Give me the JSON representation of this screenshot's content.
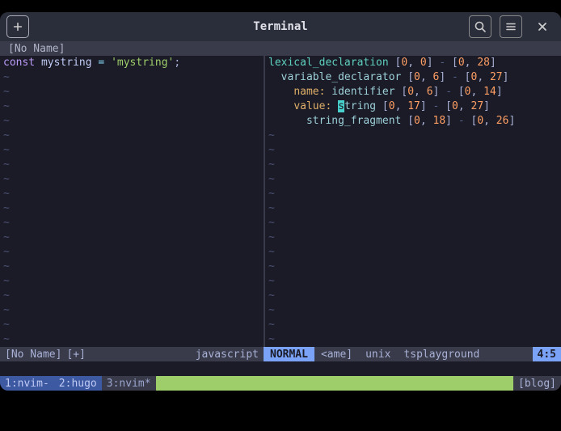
{
  "window": {
    "title": "Terminal"
  },
  "tab": {
    "label": "[No Name]"
  },
  "left_pane": {
    "code_tokens": [
      {
        "t": "const",
        "c": "kw-const"
      },
      {
        "t": " ",
        "c": "punct"
      },
      {
        "t": "mystring",
        "c": "ident"
      },
      {
        "t": " ",
        "c": "punct"
      },
      {
        "t": "=",
        "c": "eq"
      },
      {
        "t": " ",
        "c": "punct"
      },
      {
        "t": "'mystring'",
        "c": "str"
      },
      {
        "t": ";",
        "c": "punct"
      }
    ],
    "empty_rows": 19,
    "status": {
      "name": "[No Name]",
      "modified": "[+]",
      "filetype": "javascript"
    }
  },
  "right_pane": {
    "lines": [
      [
        {
          "t": "lexical_declaration",
          "c": "decl"
        },
        {
          "t": " [",
          "c": "bracket"
        },
        {
          "t": "0",
          "c": "num"
        },
        {
          "t": ", ",
          "c": "bracket"
        },
        {
          "t": "0",
          "c": "num"
        },
        {
          "t": "] ",
          "c": "bracket"
        },
        {
          "t": "-",
          "c": "dash"
        },
        {
          "t": " [",
          "c": "bracket"
        },
        {
          "t": "0",
          "c": "num"
        },
        {
          "t": ", ",
          "c": "bracket"
        },
        {
          "t": "28",
          "c": "num"
        },
        {
          "t": "]",
          "c": "bracket"
        }
      ],
      [
        {
          "t": "  ",
          "c": "bracket"
        },
        {
          "t": "variable_declarator",
          "c": "node-name"
        },
        {
          "t": " [",
          "c": "bracket"
        },
        {
          "t": "0",
          "c": "num"
        },
        {
          "t": ", ",
          "c": "bracket"
        },
        {
          "t": "6",
          "c": "num"
        },
        {
          "t": "] ",
          "c": "bracket"
        },
        {
          "t": "-",
          "c": "dash"
        },
        {
          "t": " [",
          "c": "bracket"
        },
        {
          "t": "0",
          "c": "num"
        },
        {
          "t": ", ",
          "c": "bracket"
        },
        {
          "t": "27",
          "c": "num"
        },
        {
          "t": "]",
          "c": "bracket"
        }
      ],
      [
        {
          "t": "    ",
          "c": "bracket"
        },
        {
          "t": "name:",
          "c": "field-name"
        },
        {
          "t": " ",
          "c": "bracket"
        },
        {
          "t": "identifier",
          "c": "node-name"
        },
        {
          "t": " [",
          "c": "bracket"
        },
        {
          "t": "0",
          "c": "num"
        },
        {
          "t": ", ",
          "c": "bracket"
        },
        {
          "t": "6",
          "c": "num"
        },
        {
          "t": "] ",
          "c": "bracket"
        },
        {
          "t": "-",
          "c": "dash"
        },
        {
          "t": " [",
          "c": "bracket"
        },
        {
          "t": "0",
          "c": "num"
        },
        {
          "t": ", ",
          "c": "bracket"
        },
        {
          "t": "14",
          "c": "num"
        },
        {
          "t": "]",
          "c": "bracket"
        }
      ],
      [
        {
          "t": "    ",
          "c": "bracket"
        },
        {
          "t": "value:",
          "c": "field-name"
        },
        {
          "t": " ",
          "c": "bracket"
        },
        {
          "t": "s",
          "c": "cursor-cell"
        },
        {
          "t": "tring",
          "c": "node-name"
        },
        {
          "t": " [",
          "c": "bracket"
        },
        {
          "t": "0",
          "c": "num"
        },
        {
          "t": ", ",
          "c": "bracket"
        },
        {
          "t": "17",
          "c": "num"
        },
        {
          "t": "] ",
          "c": "bracket"
        },
        {
          "t": "-",
          "c": "dash"
        },
        {
          "t": " [",
          "c": "bracket"
        },
        {
          "t": "0",
          "c": "num"
        },
        {
          "t": ", ",
          "c": "bracket"
        },
        {
          "t": "27",
          "c": "num"
        },
        {
          "t": "]",
          "c": "bracket"
        }
      ],
      [
        {
          "t": "      ",
          "c": "bracket"
        },
        {
          "t": "string_fragment",
          "c": "node-name"
        },
        {
          "t": " [",
          "c": "bracket"
        },
        {
          "t": "0",
          "c": "num"
        },
        {
          "t": ", ",
          "c": "bracket"
        },
        {
          "t": "18",
          "c": "num"
        },
        {
          "t": "] ",
          "c": "bracket"
        },
        {
          "t": "-",
          "c": "dash"
        },
        {
          "t": " [",
          "c": "bracket"
        },
        {
          "t": "0",
          "c": "num"
        },
        {
          "t": ", ",
          "c": "bracket"
        },
        {
          "t": "26",
          "c": "num"
        },
        {
          "t": "]",
          "c": "bracket"
        }
      ]
    ],
    "empty_rows": 15,
    "status": {
      "mode": "NORMAL",
      "name": "<ame]",
      "fileformat": "unix",
      "filetype": "tsplayground",
      "pos": "4:5"
    }
  },
  "tmux": {
    "windows": [
      {
        "label": "1:nvim-",
        "style": "blue"
      },
      {
        "label": "2:hugo",
        "style": "blue"
      },
      {
        "label": "3:nvim*",
        "style": "gray"
      }
    ],
    "session": "[blog]"
  },
  "colors": {
    "bg": "#1a1b26",
    "tab_bg": "#393b4a",
    "accent": "#7aa2f7",
    "green": "#9ece6a"
  }
}
